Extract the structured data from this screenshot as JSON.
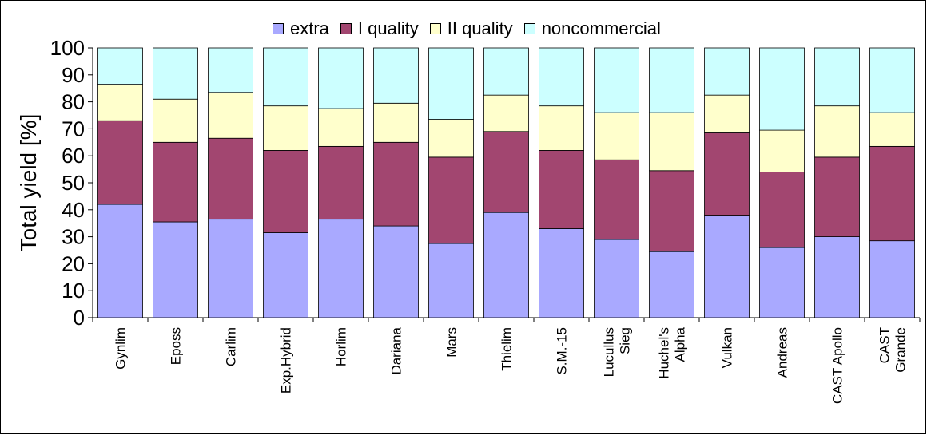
{
  "chart_data": {
    "type": "bar",
    "stacked": true,
    "ylabel": "Total yield [%]",
    "ylim": [
      0,
      100
    ],
    "yticks": [
      "0",
      "10",
      "20",
      "30",
      "40",
      "50",
      "60",
      "70",
      "80",
      "90",
      "100"
    ],
    "legend_position": "top",
    "grid": false,
    "categories": [
      [
        "Gynlim"
      ],
      [
        "Eposs"
      ],
      [
        "Carlim"
      ],
      [
        "Exp.Hybrid"
      ],
      [
        "Horlim"
      ],
      [
        "Dariana"
      ],
      [
        "Mars"
      ],
      [
        "Thielim"
      ],
      [
        "S.M.-15"
      ],
      [
        "Lucullus",
        "Sieg"
      ],
      [
        "Huchel's",
        "Alpha"
      ],
      [
        "Vulkan"
      ],
      [
        "Andreas"
      ],
      [
        "CAST Apollo"
      ],
      [
        "CAST",
        "Grande"
      ]
    ],
    "series": [
      {
        "name": "extra",
        "color": "#a9a9ff",
        "values": [
          42,
          35.5,
          36.5,
          31.5,
          36.5,
          34,
          27.5,
          39,
          33,
          29,
          24.5,
          38,
          26,
          30,
          28.5
        ]
      },
      {
        "name": "I quality",
        "color": "#a24670",
        "values": [
          31,
          29.5,
          30,
          30.5,
          27,
          31,
          32,
          30,
          29,
          29.5,
          30,
          30.5,
          28,
          29.5,
          35
        ]
      },
      {
        "name": "II quality",
        "color": "#ffffcc",
        "values": [
          13.5,
          16,
          17,
          16.5,
          14,
          14.5,
          14,
          13.5,
          16.5,
          17.5,
          21.5,
          14,
          15.5,
          19,
          12.5
        ]
      },
      {
        "name": "noncommercial",
        "color": "#ccffff",
        "values": [
          13.5,
          19,
          16.5,
          21.5,
          22.5,
          20.5,
          26.5,
          17.5,
          21.5,
          24,
          24,
          17.5,
          30.5,
          21.5,
          24
        ]
      }
    ]
  }
}
